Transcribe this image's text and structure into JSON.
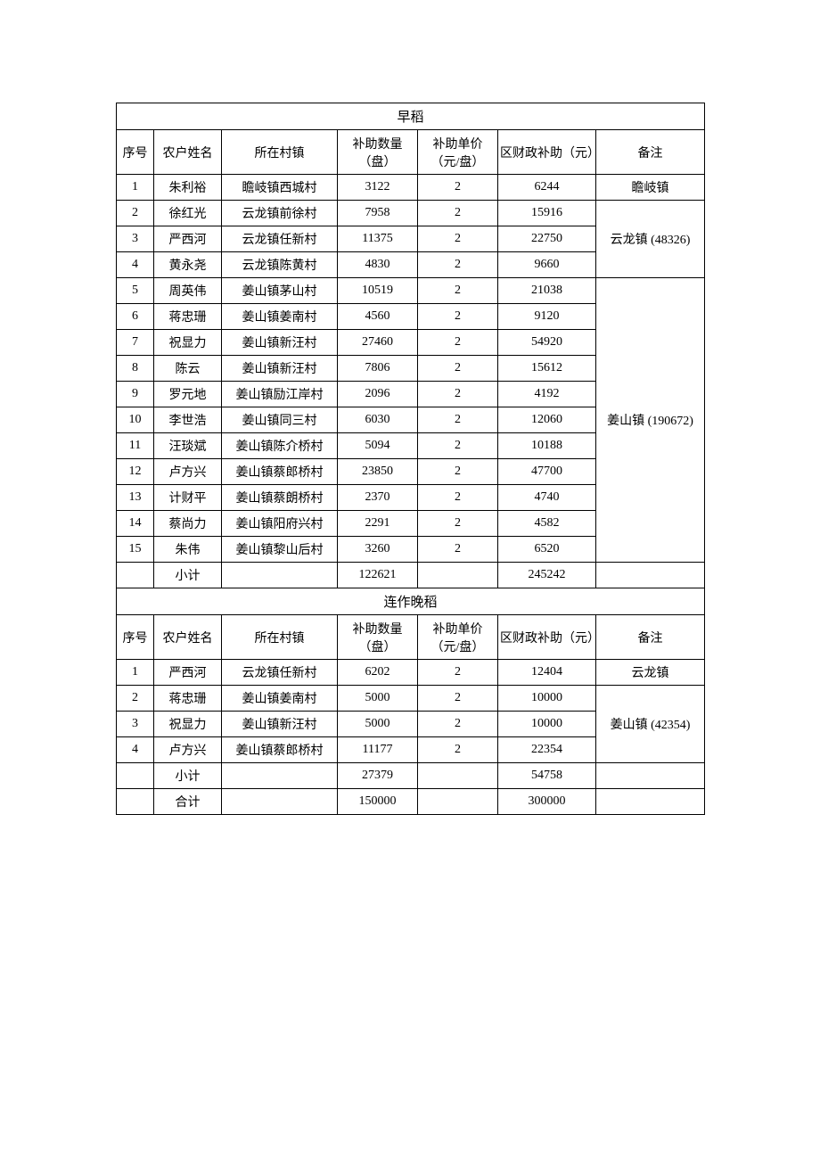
{
  "sections": {
    "early": {
      "title": "早稻",
      "headers": {
        "seq": "序号",
        "name": "农户姓名",
        "village": "所在村镇",
        "qty": "补助数量（盘）",
        "price": "补助单价（元/盘）",
        "subsidy": "区财政补助（元）",
        "remark": "备注"
      },
      "rows": [
        {
          "seq": "1",
          "name": "朱利裕",
          "village": "瞻岐镇西城村",
          "qty": "3122",
          "price": "2",
          "subsidy": "6244"
        },
        {
          "seq": "2",
          "name": "徐红光",
          "village": "云龙镇前徐村",
          "qty": "7958",
          "price": "2",
          "subsidy": "15916"
        },
        {
          "seq": "3",
          "name": "严西河",
          "village": "云龙镇任新村",
          "qty": "11375",
          "price": "2",
          "subsidy": "22750"
        },
        {
          "seq": "4",
          "name": "黄永尧",
          "village": "云龙镇陈黄村",
          "qty": "4830",
          "price": "2",
          "subsidy": "9660"
        },
        {
          "seq": "5",
          "name": "周英伟",
          "village": "姜山镇茅山村",
          "qty": "10519",
          "price": "2",
          "subsidy": "21038"
        },
        {
          "seq": "6",
          "name": "蒋忠珊",
          "village": "姜山镇姜南村",
          "qty": "4560",
          "price": "2",
          "subsidy": "9120"
        },
        {
          "seq": "7",
          "name": "祝显力",
          "village": "姜山镇新汪村",
          "qty": "27460",
          "price": "2",
          "subsidy": "54920"
        },
        {
          "seq": "8",
          "name": "陈云",
          "village": "姜山镇新汪村",
          "qty": "7806",
          "price": "2",
          "subsidy": "15612"
        },
        {
          "seq": "9",
          "name": "罗元地",
          "village": "姜山镇励江岸村",
          "qty": "2096",
          "price": "2",
          "subsidy": "4192"
        },
        {
          "seq": "10",
          "name": "李世浩",
          "village": "姜山镇同三村",
          "qty": "6030",
          "price": "2",
          "subsidy": "12060"
        },
        {
          "seq": "11",
          "name": "汪琰斌",
          "village": "姜山镇陈介桥村",
          "qty": "5094",
          "price": "2",
          "subsidy": "10188"
        },
        {
          "seq": "12",
          "name": "卢方兴",
          "village": "姜山镇蔡郎桥村",
          "qty": "23850",
          "price": "2",
          "subsidy": "47700"
        },
        {
          "seq": "13",
          "name": "计财平",
          "village": "姜山镇蔡朗桥村",
          "qty": "2370",
          "price": "2",
          "subsidy": "4740"
        },
        {
          "seq": "14",
          "name": "蔡尚力",
          "village": "姜山镇阳府兴村",
          "qty": "2291",
          "price": "2",
          "subsidy": "4582"
        },
        {
          "seq": "15",
          "name": "朱伟",
          "village": "姜山镇黎山后村",
          "qty": "3260",
          "price": "2",
          "subsidy": "6520"
        }
      ],
      "remarks": {
        "r1": "瞻岐镇",
        "r2": "云龙镇 (48326)",
        "r3": "姜山镇 (190672)"
      },
      "subtotal": {
        "label": "小计",
        "qty": "122621",
        "subsidy": "245242"
      }
    },
    "late": {
      "title": "连作晚稻",
      "headers": {
        "seq": "序号",
        "name": "农户姓名",
        "village": "所在村镇",
        "qty": "补助数量（盘）",
        "price": "补助单价（元/盘）",
        "subsidy": "区财政补助（元）",
        "remark": "备注"
      },
      "rows": [
        {
          "seq": "1",
          "name": "严西河",
          "village": "云龙镇任新村",
          "qty": "6202",
          "price": "2",
          "subsidy": "12404"
        },
        {
          "seq": "2",
          "name": "蒋忠珊",
          "village": "姜山镇姜南村",
          "qty": "5000",
          "price": "2",
          "subsidy": "10000"
        },
        {
          "seq": "3",
          "name": "祝显力",
          "village": "姜山镇新汪村",
          "qty": "5000",
          "price": "2",
          "subsidy": "10000"
        },
        {
          "seq": "4",
          "name": "卢方兴",
          "village": "姜山镇蔡郎桥村",
          "qty": "11177",
          "price": "2",
          "subsidy": "22354"
        }
      ],
      "remarks": {
        "r1": "云龙镇",
        "r2": "姜山镇 (42354)"
      },
      "subtotal": {
        "label": "小计",
        "qty": "27379",
        "subsidy": "54758"
      },
      "total": {
        "label": "合计",
        "qty": "150000",
        "subsidy": "300000"
      }
    }
  }
}
